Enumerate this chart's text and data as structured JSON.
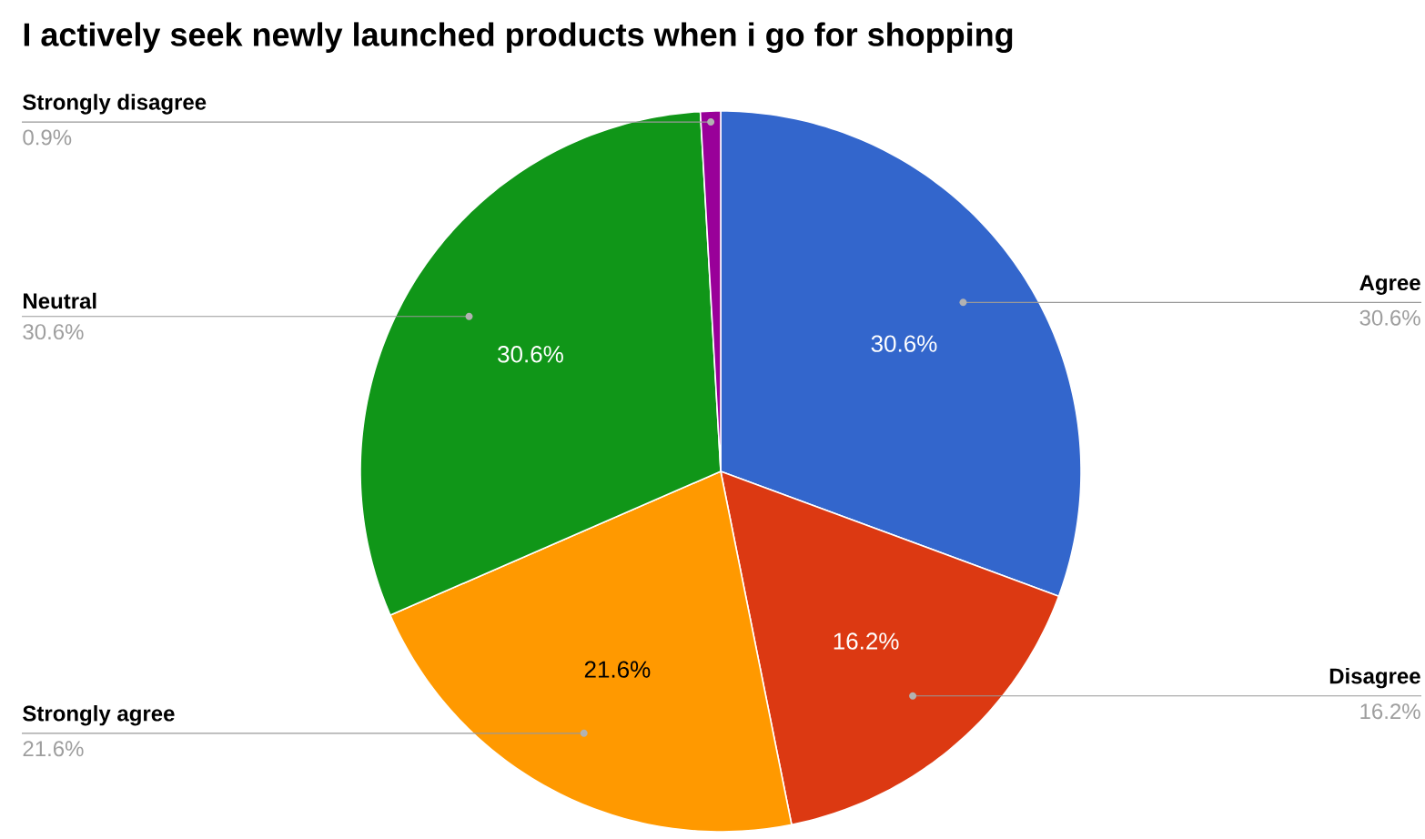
{
  "chart_data": {
    "type": "pie",
    "title": "I actively seek newly launched products when i go for shopping",
    "categories": [
      "Agree",
      "Disagree",
      "Strongly agree",
      "Neutral",
      "Strongly disagree"
    ],
    "values": [
      30.6,
      16.2,
      21.6,
      30.6,
      0.9
    ],
    "colors": [
      "#3366cc",
      "#dc3912",
      "#ff9900",
      "#109618",
      "#990099"
    ],
    "value_labels": [
      "30.6%",
      "16.2%",
      "21.6%",
      "30.6%",
      "0.9%"
    ]
  }
}
